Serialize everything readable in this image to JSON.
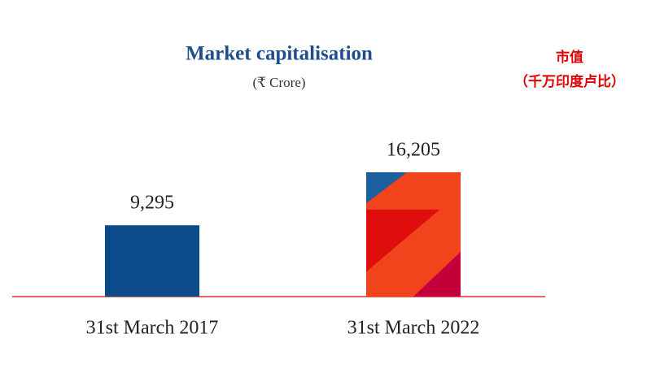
{
  "chart_data": {
    "type": "bar",
    "title": "Market capitalisation",
    "subtitle": "(₹ Crore)",
    "annotations": [
      "市值",
      "（千万印度卢比）"
    ],
    "categories": [
      "31st March 2017",
      "31st March 2022"
    ],
    "values": [
      9295,
      16205
    ],
    "value_labels": [
      "9,295",
      "16,205"
    ],
    "colors": [
      "#0b4a8b",
      "#f2441c"
    ]
  }
}
